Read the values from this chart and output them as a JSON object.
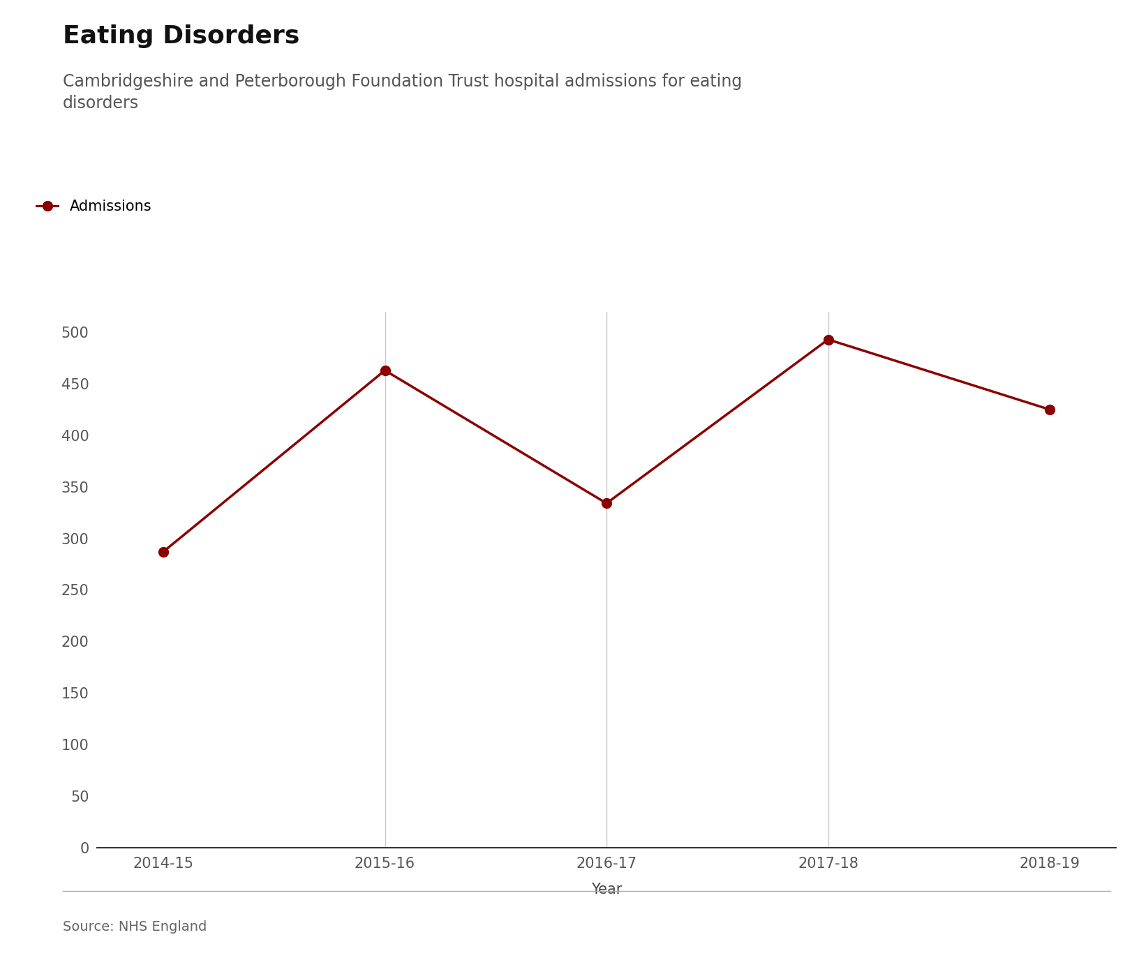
{
  "title": "Eating Disorders",
  "subtitle": "Cambridgeshire and Peterborough Foundation Trust hospital admissions for eating\ndisorders",
  "xlabel": "Year",
  "source": "Source: NHS England",
  "legend_label": "Admissions",
  "categories": [
    "2014-15",
    "2015-16",
    "2016-17",
    "2017-18",
    "2018-19"
  ],
  "values": [
    287,
    463,
    334,
    493,
    425
  ],
  "line_color": "#8B0000",
  "marker_color": "#8B0000",
  "background_color": "#ffffff",
  "grid_color": "#c8c8c8",
  "ylim": [
    0,
    520
  ],
  "yticks": [
    0,
    50,
    100,
    150,
    200,
    250,
    300,
    350,
    400,
    450,
    500
  ],
  "title_fontsize": 26,
  "subtitle_fontsize": 17,
  "axis_fontsize": 15,
  "tick_fontsize": 15,
  "legend_fontsize": 15,
  "source_fontsize": 14
}
